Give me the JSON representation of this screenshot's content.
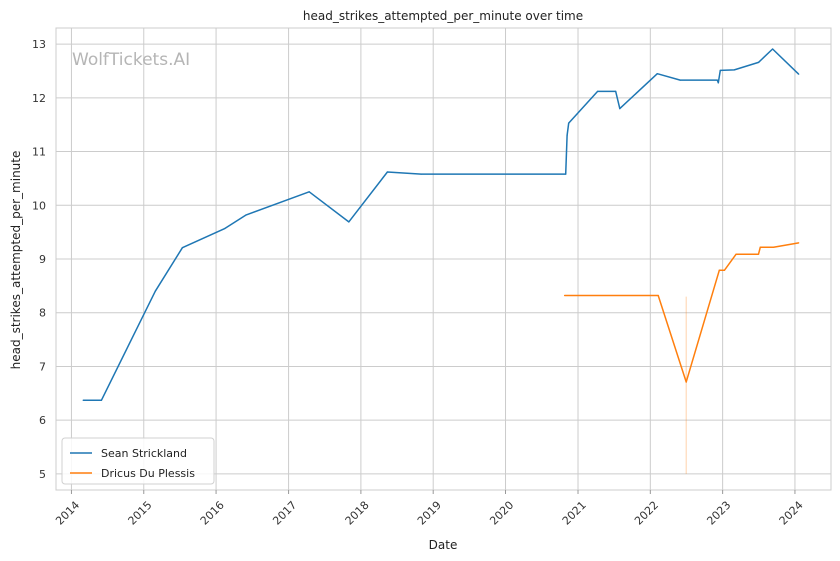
{
  "watermark": "WolfTickets.AI",
  "chart_data": {
    "type": "line",
    "title": "head_strikes_attempted_per_minute over time",
    "xlabel": "Date",
    "ylabel": "head_strikes_attempted_per_minute",
    "xlim": [
      "2013-10-15",
      "2024-07-01"
    ],
    "ylim": [
      4.7,
      13.3
    ],
    "x_ticks": [
      "2014",
      "2015",
      "2016",
      "2017",
      "2018",
      "2019",
      "2020",
      "2021",
      "2022",
      "2023",
      "2024"
    ],
    "y_ticks": [
      5,
      6,
      7,
      8,
      9,
      10,
      11,
      12,
      13
    ],
    "grid": true,
    "legend_position": "lower-left",
    "series": [
      {
        "name": "Sean Strickland",
        "color": "#1f77b4",
        "x": [
          "2014-03-01",
          "2014-06-01",
          "2015-02-28",
          "2015-07-15",
          "2016-02-15",
          "2016-06-01",
          "2017-04-15",
          "2017-11-01",
          "2018-05-15",
          "2018-11-01",
          "2020-10-31",
          "2020-11-07",
          "2020-11-15",
          "2021-04-10",
          "2021-07-10",
          "2021-07-31",
          "2022-02-05",
          "2022-06-01",
          "2022-12-05",
          "2022-12-10",
          "2022-12-20",
          "2023-03-01",
          "2023-07-01",
          "2023-09-10",
          "2024-01-20"
        ],
        "y": [
          6.37,
          6.37,
          8.4,
          9.21,
          9.57,
          9.82,
          10.25,
          9.69,
          10.62,
          10.58,
          10.58,
          11.3,
          11.53,
          12.12,
          12.12,
          11.8,
          12.45,
          12.33,
          12.33,
          12.28,
          12.51,
          12.52,
          12.66,
          12.91,
          12.44
        ]
      },
      {
        "name": "Dricus Du Plessis",
        "color": "#ff7f0e",
        "x": [
          "2020-10-25",
          "2022-02-10",
          "2022-07-01",
          "2022-12-15",
          "2023-01-10",
          "2023-03-10",
          "2023-07-01",
          "2023-07-10",
          "2023-09-15",
          "2024-01-20"
        ],
        "y": [
          8.32,
          8.32,
          6.71,
          8.79,
          8.79,
          9.09,
          9.09,
          9.22,
          9.22,
          9.3
        ]
      }
    ],
    "annotations": [
      {
        "type": "vertical-band",
        "x": "2022-07-01",
        "y_from": 5.0,
        "y_to": 8.3,
        "color": "#ff7f0e"
      }
    ]
  }
}
